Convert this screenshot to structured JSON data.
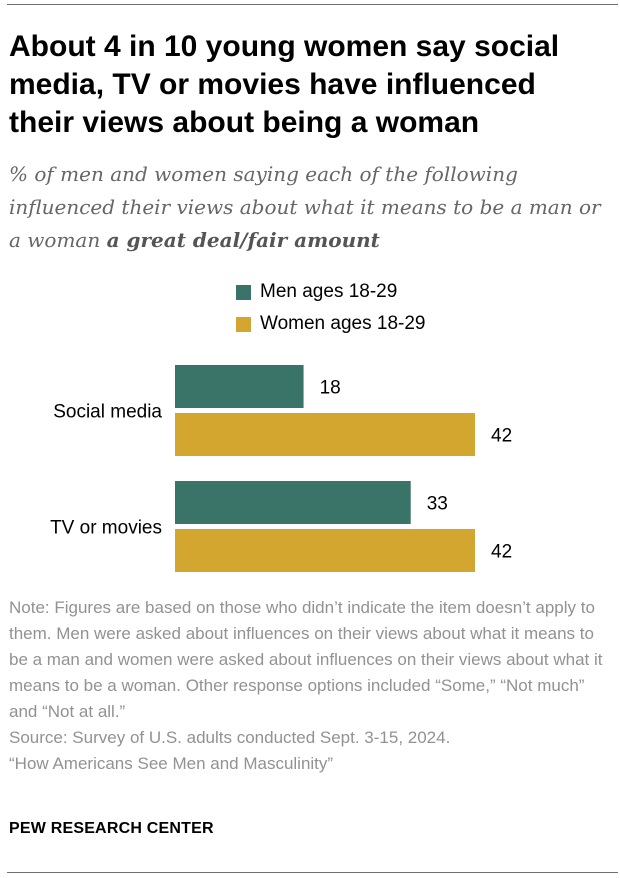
{
  "title": "About 4 in 10 young women say social media, TV or movies have influenced their views about being a woman",
  "subtitle": {
    "text": "% of men and women saying each of the following influenced their views about what it means to be a man or a woman ",
    "emphasis": "a great deal/fair amount"
  },
  "legend": [
    {
      "label": "Men ages 18-29",
      "color": "#3a7468"
    },
    {
      "label": "Women ages 18-29",
      "color": "#d3a62f"
    }
  ],
  "chart_data": {
    "type": "bar",
    "orientation": "horizontal",
    "categories": [
      "Social media",
      "TV or movies"
    ],
    "series": [
      {
        "name": "Men ages 18-29",
        "values": [
          18,
          33
        ],
        "color": "#3a7468"
      },
      {
        "name": "Women ages 18-29",
        "values": [
          42,
          42
        ],
        "color": "#d3a62f"
      }
    ],
    "xlim": [
      0,
      42
    ],
    "grid": false,
    "legend_position": "top"
  },
  "note": {
    "text": "Note: Figures are based on those who didn’t indicate the item doesn’t apply to them. Men were asked about influences on their views about what it means to be a man and women were asked about influences on their views about what it means to be a woman. Other response options included “Some,” “Not much” and “Not at all.”",
    "source": "Source: Survey of U.S. adults conducted Sept. 3-15, 2024.",
    "report": "“How Americans See Men and Masculinity”"
  },
  "footer": "PEW RESEARCH CENTER"
}
